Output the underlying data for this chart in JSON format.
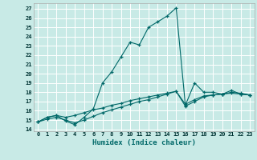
{
  "xlabel": "Humidex (Indice chaleur)",
  "background_color": "#c8eae6",
  "grid_color": "#ffffff",
  "line_color": "#006868",
  "xlim": [
    -0.5,
    23.5
  ],
  "ylim": [
    13.8,
    27.6
  ],
  "xticks": [
    0,
    1,
    2,
    3,
    4,
    5,
    6,
    7,
    8,
    9,
    10,
    11,
    12,
    13,
    14,
    15,
    16,
    17,
    18,
    19,
    20,
    21,
    22,
    23
  ],
  "yticks": [
    14,
    15,
    16,
    17,
    18,
    19,
    20,
    21,
    22,
    23,
    24,
    25,
    26,
    27
  ],
  "lines": [
    {
      "x": [
        0,
        1,
        2,
        3,
        4,
        5,
        6,
        7,
        8,
        9,
        10,
        11,
        12,
        13,
        14,
        15,
        16,
        17,
        18,
        19,
        20,
        21,
        22,
        23
      ],
      "y": [
        14.8,
        15.3,
        15.5,
        14.9,
        14.5,
        15.3,
        16.2,
        19.0,
        20.2,
        21.8,
        23.4,
        23.1,
        25.0,
        25.6,
        26.2,
        27.1,
        16.6,
        19.0,
        18.0,
        18.0,
        17.8,
        18.2,
        17.8,
        17.7
      ]
    },
    {
      "x": [
        0,
        1,
        2,
        3,
        4,
        5,
        6,
        7,
        8,
        9,
        10,
        11,
        12,
        13,
        14,
        15,
        16,
        17,
        18,
        19,
        20,
        21,
        22,
        23
      ],
      "y": [
        14.8,
        15.3,
        15.5,
        15.3,
        15.5,
        15.8,
        16.1,
        16.3,
        16.6,
        16.8,
        17.1,
        17.3,
        17.5,
        17.7,
        17.9,
        18.1,
        16.7,
        17.2,
        17.6,
        17.7,
        17.8,
        18.0,
        17.9,
        17.7
      ]
    },
    {
      "x": [
        0,
        1,
        2,
        3,
        4,
        5,
        6,
        7,
        8,
        9,
        10,
        11,
        12,
        13,
        14,
        15,
        16,
        17,
        18,
        19,
        20,
        21,
        22,
        23
      ],
      "y": [
        14.8,
        15.1,
        15.3,
        15.0,
        14.7,
        15.0,
        15.4,
        15.8,
        16.1,
        16.4,
        16.7,
        17.0,
        17.2,
        17.5,
        17.8,
        18.1,
        16.5,
        17.0,
        17.5,
        17.7,
        17.8,
        17.9,
        17.8,
        17.7
      ]
    }
  ]
}
